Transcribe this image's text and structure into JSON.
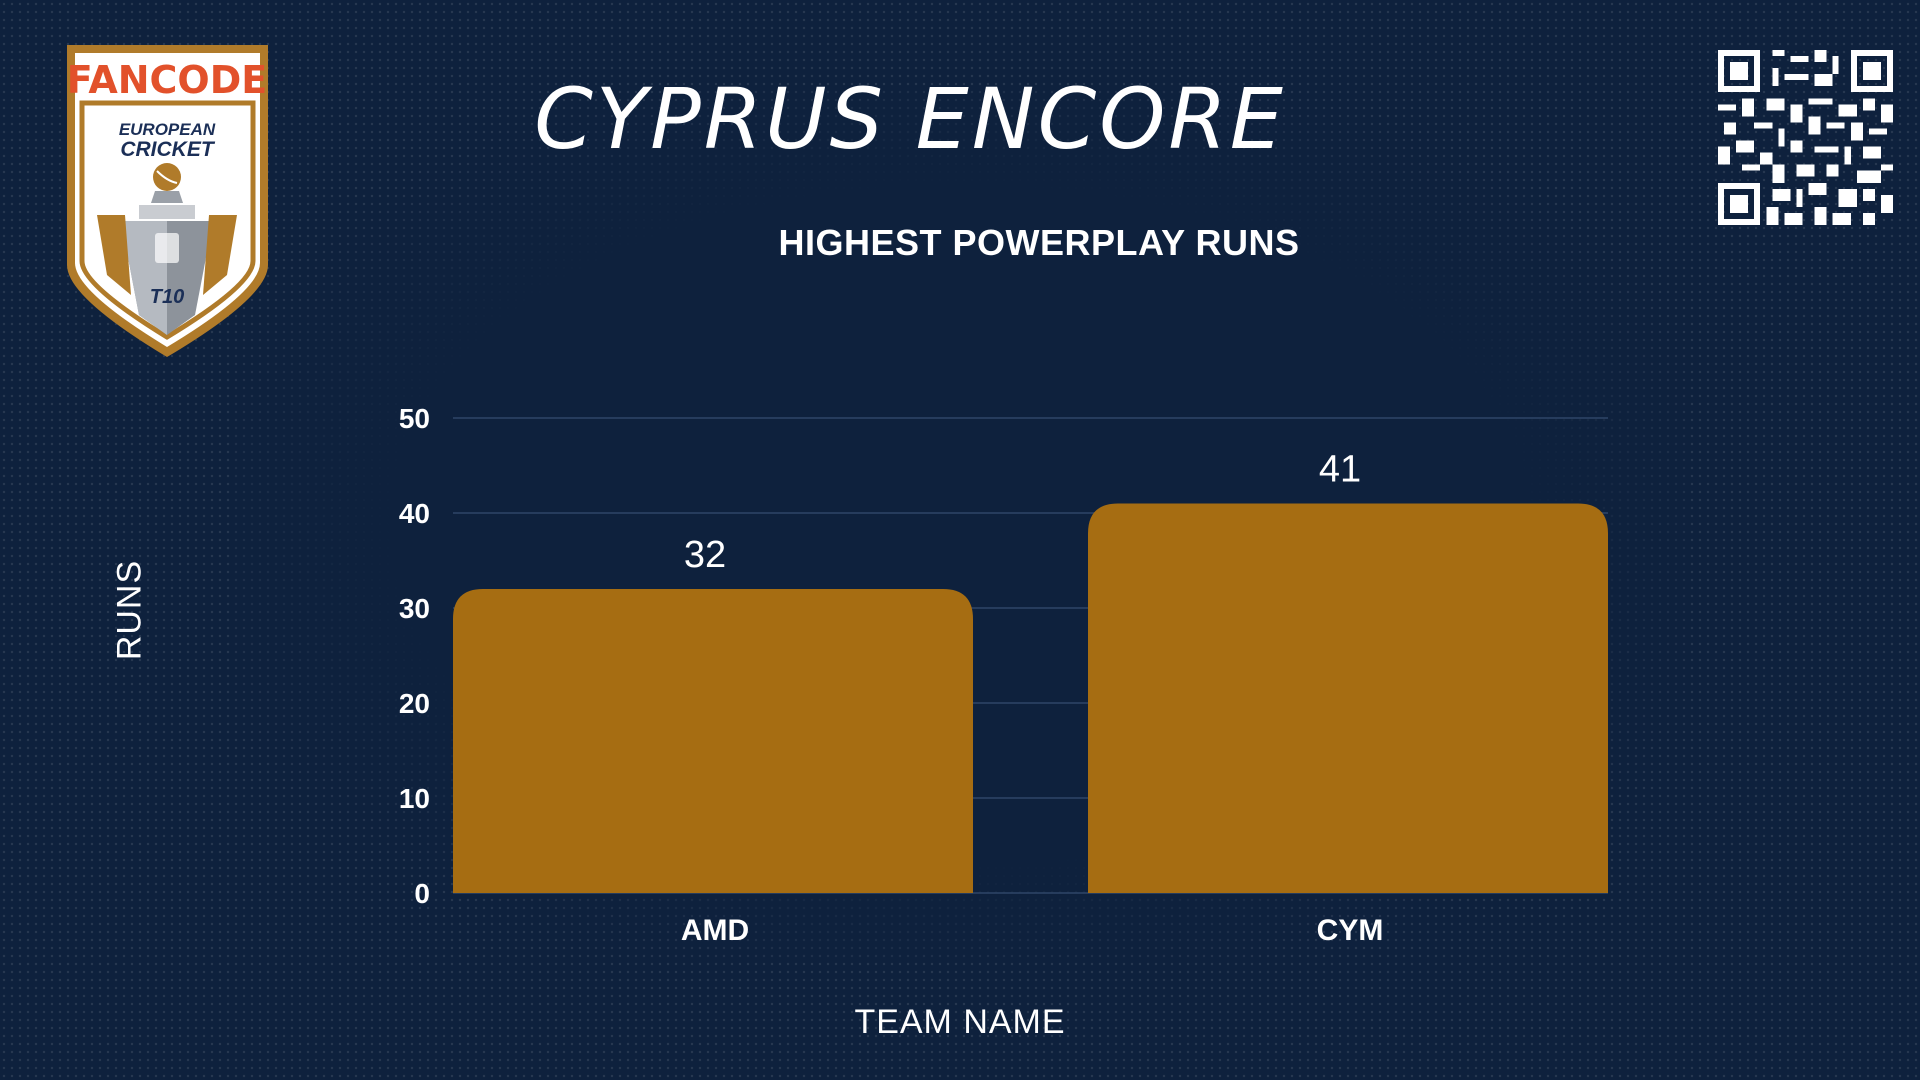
{
  "header": {
    "title": "CYPRUS ENCORE",
    "subtitle": "HIGHEST POWERPLAY RUNS"
  },
  "logo": {
    "brand": "FANCODE",
    "line1": "EUROPEAN",
    "line2": "CRICKET",
    "badge": "T10"
  },
  "colors": {
    "background": "#0e213d",
    "bar": "#a66d12",
    "grid": "#2f4668",
    "text": "#ffffff"
  },
  "chart_data": {
    "type": "bar",
    "title": "HIGHEST POWERPLAY RUNS",
    "xlabel": "TEAM NAME",
    "ylabel": "RUNS",
    "categories": [
      "AMD",
      "CYM"
    ],
    "values": [
      32,
      41
    ],
    "data_labels": [
      "32",
      "41"
    ],
    "ylim": [
      0,
      50
    ],
    "yticks": [
      0,
      10,
      20,
      30,
      40,
      50
    ],
    "ytick_labels": [
      "0",
      "10",
      "20",
      "30",
      "40",
      "50"
    ],
    "grid": true,
    "legend": "none"
  }
}
